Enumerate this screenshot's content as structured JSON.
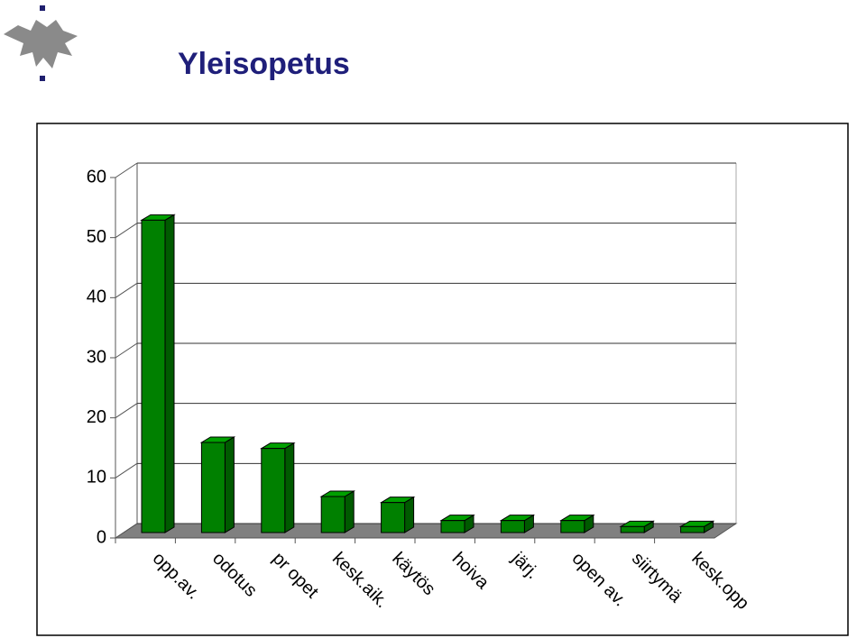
{
  "chart_data": {
    "type": "bar3d",
    "title": "Yleisopetus",
    "categories": [
      "opp.av.",
      "odotus",
      "pr opet",
      "kesk.aik.",
      "käytös",
      "hoiva",
      "järj.",
      "open av.",
      "siirtymä",
      "kesk.opp"
    ],
    "values": [
      52,
      15,
      14,
      6,
      5,
      2,
      2,
      2,
      1,
      1
    ],
    "color": "#008000",
    "ylim": [
      0,
      60
    ],
    "yticks": [
      0,
      10,
      20,
      30,
      40,
      50,
      60
    ],
    "grid": true
  }
}
